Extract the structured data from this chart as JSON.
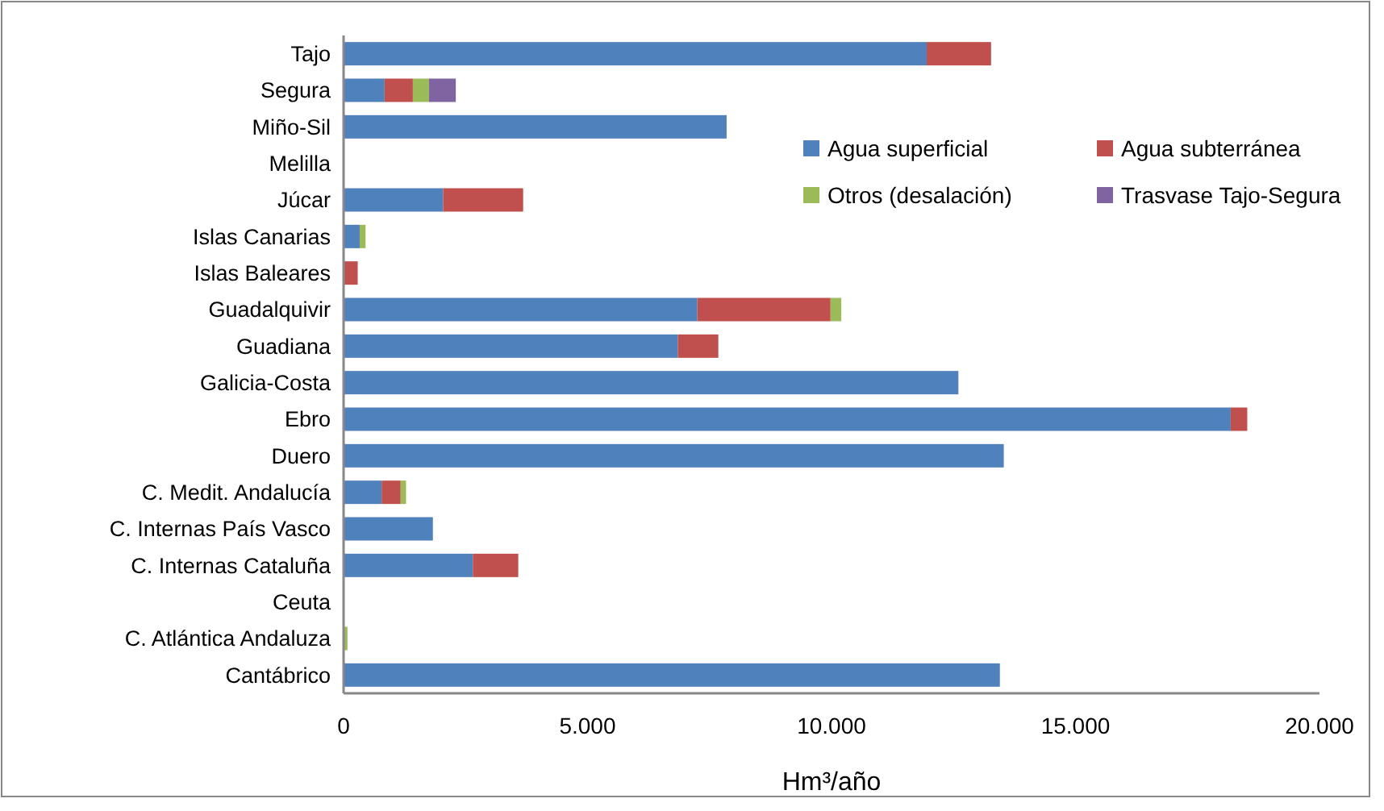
{
  "chart_data": {
    "type": "bar",
    "orientation": "horizontal",
    "stacked": true,
    "xlabel": "Hm³/año",
    "categories": [
      "Tajo",
      "Segura",
      "Miño-Sil",
      "Melilla",
      "Júcar",
      "Islas Canarias",
      "Islas Baleares",
      "Guadalquivir",
      "Guadiana",
      "Galicia-Costa",
      "Ebro",
      "Duero",
      "C. Medit. Andalucía",
      "C. Internas País Vasco",
      "C. Internas Cataluña",
      "Ceuta",
      "C. Atlántica Andaluza",
      "Cantábrico"
    ],
    "series": [
      {
        "name": "Agua superficial",
        "color": "#4f81bd",
        "values": [
          11950,
          840,
          7850,
          0,
          2040,
          330,
          0,
          7250,
          6850,
          12600,
          18180,
          13530,
          780,
          1830,
          2650,
          0,
          0,
          13450
        ]
      },
      {
        "name": "Agua subterránea",
        "color": "#c0504d",
        "values": [
          1320,
          580,
          0,
          0,
          1640,
          0,
          290,
          2730,
          830,
          0,
          340,
          0,
          390,
          0,
          930,
          0,
          0,
          0
        ]
      },
      {
        "name": "Otros (desalación)",
        "color": "#9bbb59",
        "values": [
          0,
          330,
          0,
          0,
          0,
          120,
          0,
          220,
          0,
          0,
          0,
          0,
          110,
          0,
          0,
          0,
          80,
          0
        ]
      },
      {
        "name": "Trasvase Tajo-Segura",
        "color": "#8064a2",
        "values": [
          0,
          550,
          0,
          0,
          0,
          0,
          0,
          0,
          0,
          0,
          0,
          0,
          0,
          0,
          0,
          0,
          0,
          0
        ]
      }
    ],
    "xlim": [
      0,
      20000
    ],
    "xticks": [
      {
        "value": 0,
        "label": "0"
      },
      {
        "value": 5000,
        "label": "5.000"
      },
      {
        "value": 10000,
        "label": "10.000"
      },
      {
        "value": 15000,
        "label": "15.000"
      },
      {
        "value": 20000,
        "label": "20.000"
      }
    ],
    "grid": false,
    "legend": "top right"
  }
}
